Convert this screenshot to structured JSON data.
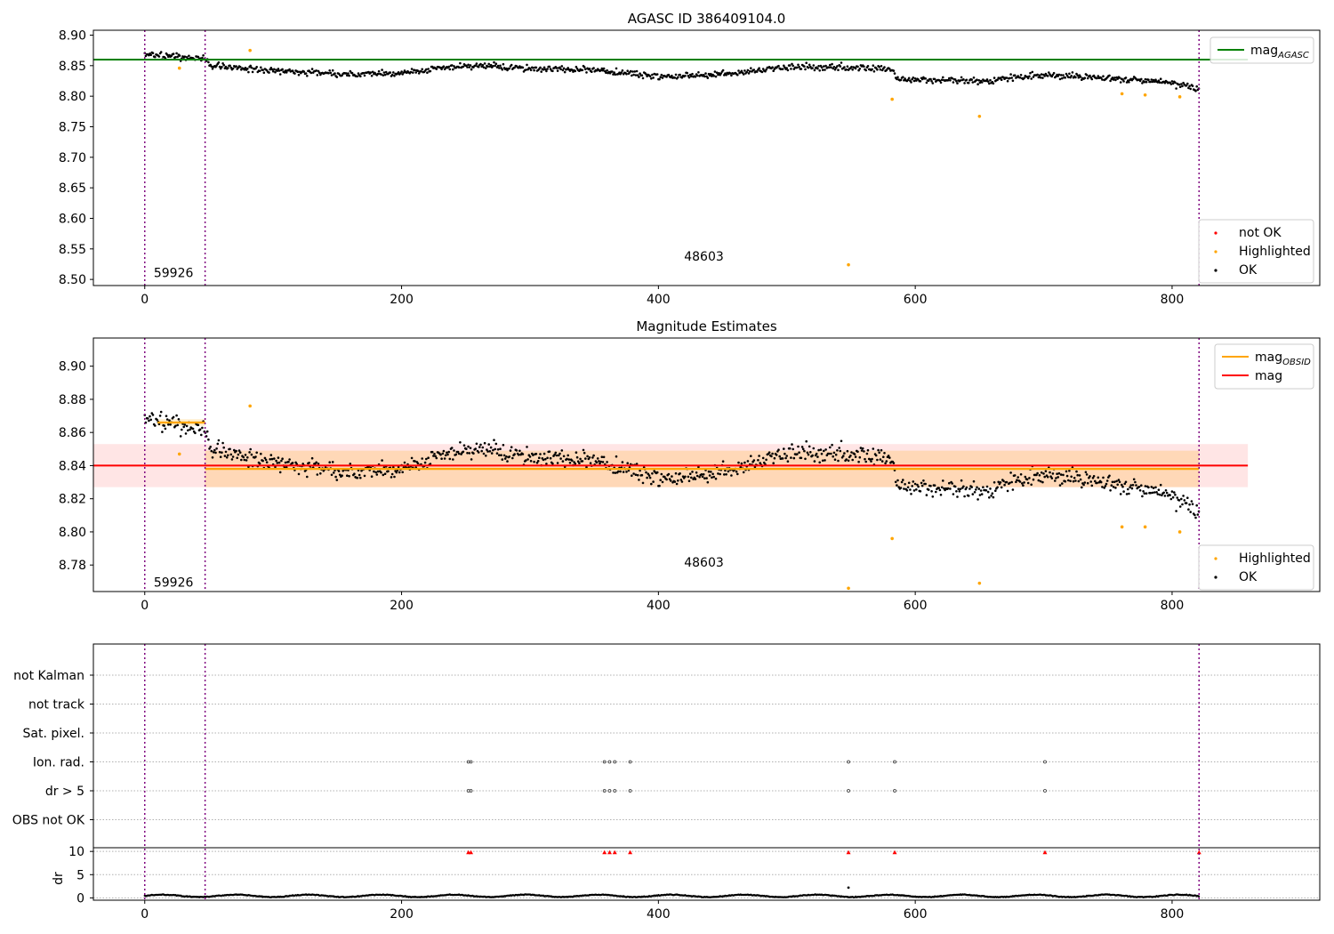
{
  "chart_data": [
    {
      "type": "scatter",
      "title": "AGASC ID 386409104.0",
      "xlim": [
        -40,
        915
      ],
      "ylim": [
        8.49,
        8.908
      ],
      "xticks": [
        0,
        200,
        400,
        600,
        800
      ],
      "yticks": [
        8.5,
        8.55,
        8.6,
        8.65,
        8.7,
        8.75,
        8.8,
        8.85,
        8.9
      ],
      "ytick_format": 2,
      "obs_boundaries": [
        0,
        47,
        821
      ],
      "obsid_labels": [
        {
          "text": "59926",
          "x": 7,
          "y": 8.504
        },
        {
          "text": "48603",
          "x": 420,
          "y": 8.531
        }
      ],
      "mag_agasc": 8.86,
      "mag_agasc_xrange": [
        -40,
        859
      ],
      "highlighted": [
        [
          27,
          8.846
        ],
        [
          82,
          8.875
        ],
        [
          582,
          8.795
        ],
        [
          650,
          8.767
        ],
        [
          548,
          8.524
        ],
        [
          761,
          8.804
        ],
        [
          779,
          8.802
        ],
        [
          806,
          8.799
        ]
      ],
      "ok_trend": [
        [
          0,
          8.868
        ],
        [
          47,
          8.862
        ],
        [
          52,
          8.85
        ],
        [
          100,
          8.842
        ],
        [
          150,
          8.836
        ],
        [
          200,
          8.838
        ],
        [
          250,
          8.85
        ],
        [
          300,
          8.846
        ],
        [
          350,
          8.843
        ],
        [
          400,
          8.832
        ],
        [
          450,
          8.835
        ],
        [
          500,
          8.848
        ],
        [
          550,
          8.846
        ],
        [
          580,
          8.845
        ],
        [
          588,
          8.828
        ],
        [
          650,
          8.824
        ],
        [
          700,
          8.835
        ],
        [
          750,
          8.83
        ],
        [
          800,
          8.822
        ],
        [
          821,
          8.812
        ]
      ],
      "ok_noise": 0.005,
      "legend_top": [
        {
          "label": "mag",
          "sub": "AGASC",
          "color": "#008000"
        }
      ],
      "legend_bottom": [
        {
          "label": "not OK",
          "color": "#ff0000"
        },
        {
          "label": "Highlighted",
          "color": "#ffa500"
        },
        {
          "label": "OK",
          "color": "#000000"
        }
      ]
    },
    {
      "type": "scatter",
      "title": "Magnitude Estimates",
      "xlim": [
        -40,
        915
      ],
      "ylim": [
        8.764,
        8.917
      ],
      "xticks": [
        0,
        200,
        400,
        600,
        800
      ],
      "yticks": [
        8.78,
        8.8,
        8.82,
        8.84,
        8.86,
        8.88,
        8.9
      ],
      "ytick_format": 2,
      "obs_boundaries": [
        0,
        47,
        821
      ],
      "obsid_labels": [
        {
          "text": "59926",
          "x": 7,
          "y": 8.767
        },
        {
          "text": "48603",
          "x": 420,
          "y": 8.779
        }
      ],
      "mag": 8.84,
      "mag_band": [
        8.827,
        8.853
      ],
      "mag_band_xrange": [
        -40,
        859
      ],
      "mag_obsid": [
        {
          "x": [
            10,
            47
          ],
          "value": 8.866,
          "band": [
            8.864,
            8.868
          ]
        },
        {
          "x": [
            47,
            821
          ],
          "value": 8.838,
          "band": [
            8.827,
            8.849
          ]
        }
      ],
      "highlighted": [
        [
          27,
          8.847
        ],
        [
          82,
          8.876
        ],
        [
          582,
          8.796
        ],
        [
          650,
          8.769
        ],
        [
          548,
          8.766
        ],
        [
          761,
          8.803
        ],
        [
          779,
          8.803
        ],
        [
          806,
          8.8
        ]
      ],
      "ok_trend": [
        [
          0,
          8.868
        ],
        [
          47,
          8.862
        ],
        [
          52,
          8.85
        ],
        [
          100,
          8.842
        ],
        [
          150,
          8.836
        ],
        [
          200,
          8.838
        ],
        [
          250,
          8.85
        ],
        [
          300,
          8.846
        ],
        [
          350,
          8.843
        ],
        [
          400,
          8.832
        ],
        [
          450,
          8.835
        ],
        [
          500,
          8.848
        ],
        [
          550,
          8.846
        ],
        [
          580,
          8.845
        ],
        [
          588,
          8.828
        ],
        [
          650,
          8.824
        ],
        [
          700,
          8.835
        ],
        [
          750,
          8.83
        ],
        [
          800,
          8.822
        ],
        [
          821,
          8.812
        ]
      ],
      "ok_noise": 0.005,
      "legend_top": [
        {
          "label": "mag",
          "sub": "OBSID",
          "color": "#ffa500"
        },
        {
          "label": "mag",
          "sub": "",
          "color": "#ff0000"
        }
      ],
      "legend_bottom": [
        {
          "label": "Highlighted",
          "color": "#ffa500"
        },
        {
          "label": "OK",
          "color": "#000000"
        }
      ]
    },
    {
      "type": "scatter",
      "title": "",
      "xlim": [
        -40,
        915
      ],
      "xticks": [
        0,
        200,
        400,
        600,
        800
      ],
      "obs_boundaries": [
        0,
        47,
        821
      ],
      "flag_rows": [
        "not Kalman",
        "not track",
        "Sat. pixel.",
        "Ion. rad.",
        "dr > 5",
        "OBS not OK"
      ],
      "flag_events": [
        252,
        254,
        358,
        362,
        366,
        378,
        548,
        584,
        701
      ],
      "dr_ylabel": "dr",
      "dr_ylim": [
        -0.5,
        10.8
      ],
      "dr_yticks": [
        0,
        5,
        10
      ],
      "dr_clipped": [
        252,
        254,
        358,
        362,
        366,
        378,
        548,
        584,
        701,
        821
      ],
      "dr_spike": [
        548,
        2.2
      ]
    }
  ]
}
